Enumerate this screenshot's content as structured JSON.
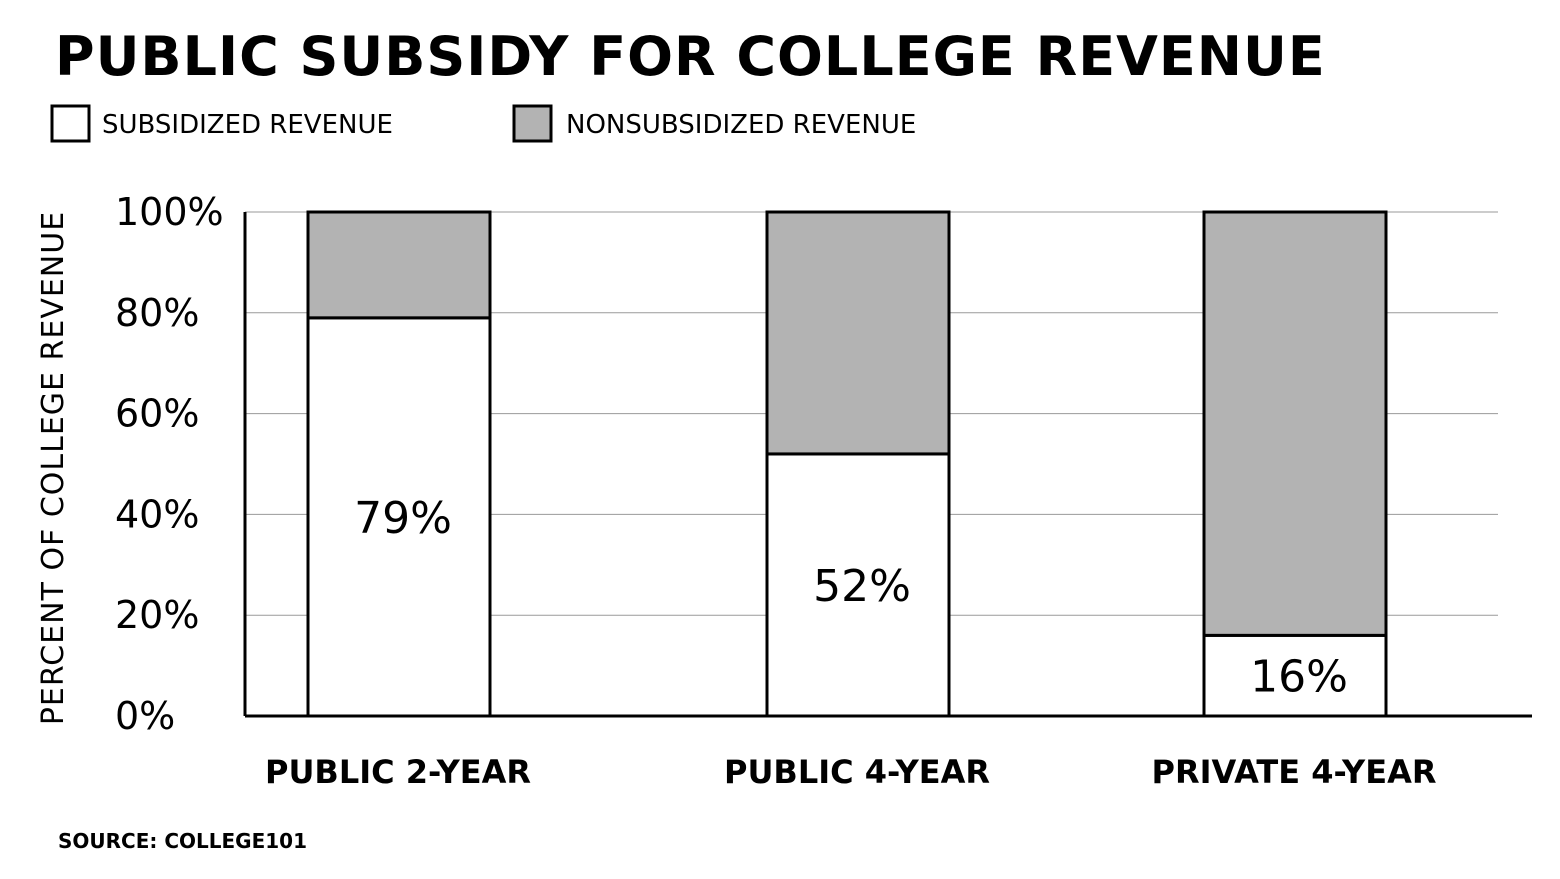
{
  "chart_data": {
    "type": "bar",
    "stacked": true,
    "title": "PUBLIC SUBSIDY FOR COLLEGE REVENUE",
    "ylabel": "PERCENT OF COLLEGE REVENUE",
    "xlabel": "",
    "categories": [
      "PUBLIC 2-YEAR",
      "PUBLIC 4-YEAR",
      "PRIVATE 4-YEAR"
    ],
    "series": [
      {
        "name": "SUBSIDIZED REVENUE",
        "values": [
          79,
          52,
          16
        ],
        "color": "#ffffff"
      },
      {
        "name": "NONSUBSIDIZED REVENUE",
        "values": [
          21,
          48,
          84
        ],
        "color": "#b3b3b3"
      }
    ],
    "data_labels": [
      "79%",
      "52%",
      "16%"
    ],
    "ylim": [
      0,
      100
    ],
    "yticks": [
      0,
      20,
      40,
      60,
      80,
      100
    ],
    "ytick_labels": [
      "0%",
      "20%",
      "40%",
      "60%",
      "80%",
      "100%"
    ],
    "grid": true,
    "legend_position": "top-left",
    "source": "SOURCE: COLLEGE101"
  }
}
